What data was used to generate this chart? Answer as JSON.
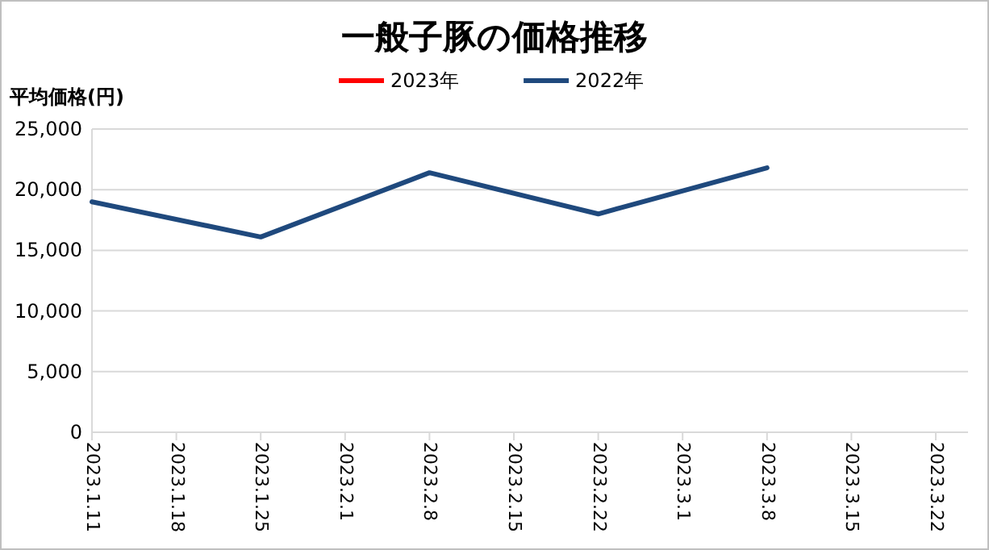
{
  "chart_data": {
    "type": "line",
    "title": "一般子豚の価格推移",
    "ylabel": "平均価格(円)",
    "categories": [
      "2023.1.11",
      "2023.1.18",
      "2023.1.25",
      "2023.2.1",
      "2023.2.8",
      "2023.2.15",
      "2023.2.22",
      "2023.3.1",
      "2023.3.8",
      "2023.3.15",
      "2023.3.22"
    ],
    "series": [
      {
        "name": "2023年",
        "color": "#ff0000",
        "values": [
          null,
          null,
          null,
          null,
          null,
          null,
          null,
          null,
          null,
          null,
          null
        ]
      },
      {
        "name": "2022年",
        "color": "#1f497d",
        "values": [
          19000,
          null,
          16100,
          null,
          21400,
          null,
          18000,
          null,
          21800,
          null,
          null
        ]
      }
    ],
    "ylim": [
      0,
      25000
    ],
    "yticks": [
      {
        "value": 0,
        "label": "0"
      },
      {
        "value": 5000,
        "label": "5,000"
      },
      {
        "value": 10000,
        "label": "10,000"
      },
      {
        "value": 15000,
        "label": "15,000"
      },
      {
        "value": 20000,
        "label": "20,000"
      },
      {
        "value": 25000,
        "label": "25,000"
      }
    ],
    "grid": "y",
    "legend": "top",
    "line_style": "solid",
    "marker": "none"
  }
}
